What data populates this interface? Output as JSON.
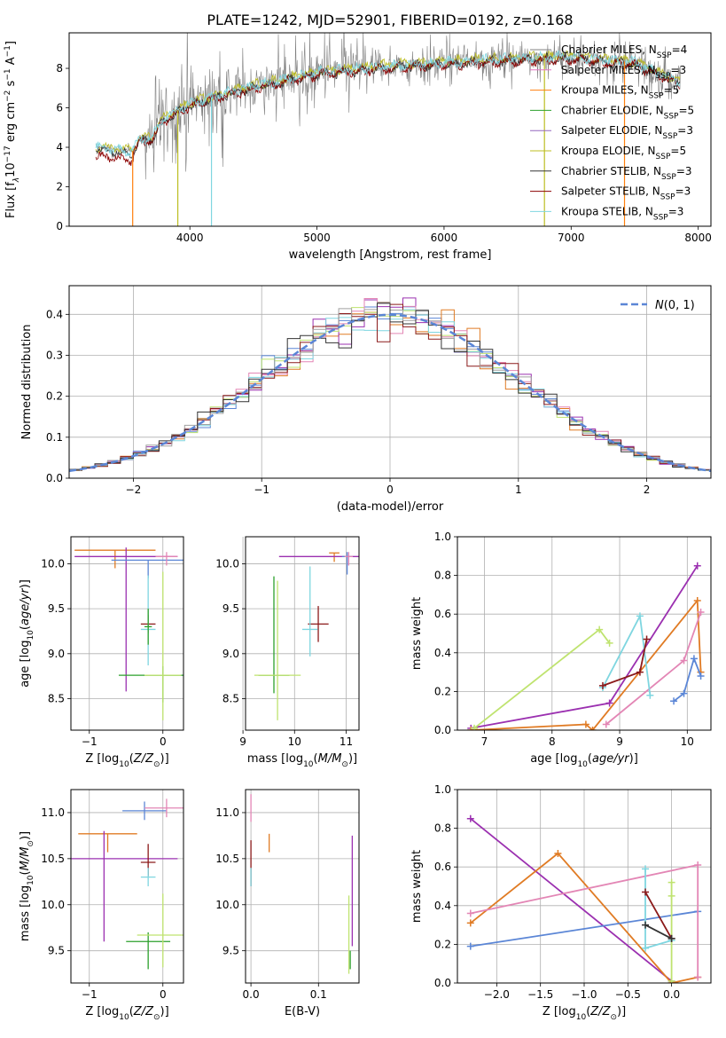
{
  "figure_title": "PLATE=1242, MJD=52901, FIBERID=0192, z=0.168",
  "colors": {
    "chabrier_miles": "#808080",
    "salpeter_miles": "#e377c2",
    "kroupa_miles": "#ff7f0e",
    "chabrier_elodie": "#2ca02c",
    "salpeter_elodie": "#9467bd",
    "kroupa_elodie": "#bcbd22",
    "chabrier_stelib": "#333333",
    "salpeter_stelib": "#8b0000",
    "kroupa_stelib": "#7fd6e0",
    "violet": "#9b30b0",
    "orange": "#e07b24",
    "blue": "#5b86d6",
    "pink": "#e386b5",
    "cyan": "#7fd6e0",
    "lime": "#bfe36f",
    "darkred": "#8b1a1a",
    "dashed": "#5b86d6"
  },
  "chart_data": [
    {
      "id": "spectrum",
      "type": "line",
      "title": "PLATE=1242, MJD=52901, FIBERID=0192, z=0.168",
      "xlabel": "wavelength [Angstrom, rest frame]",
      "ylabel": "Flux [f_λ 10^-17 erg cm^-2 s^-1 A^-1]",
      "xlim": [
        3050,
        8100
      ],
      "ylim": [
        0,
        9.8
      ],
      "xticks": [
        4000,
        5000,
        6000,
        7000,
        8000
      ],
      "yticks": [
        0,
        2,
        4,
        6,
        8
      ],
      "legend_position": "right",
      "legend": [
        {
          "label": "Chabrier MILES, N_SSP=4",
          "color": "#808080"
        },
        {
          "label": "Salpeter MILES, N_SSP=3",
          "color": "#e377c2"
        },
        {
          "label": "Kroupa MILES, N_SSP=5",
          "color": "#ff7f0e"
        },
        {
          "label": "Chabrier ELODIE, N_SSP=5",
          "color": "#2ca02c"
        },
        {
          "label": "Salpeter ELODIE, N_SSP=3",
          "color": "#9467bd"
        },
        {
          "label": "Kroupa ELODIE, N_SSP=5",
          "color": "#bcbd22"
        },
        {
          "label": "Chabrier STELIB, N_SSP=3",
          "color": "#333333"
        },
        {
          "label": "Salpeter STELIB, N_SSP=3",
          "color": "#8b0000"
        },
        {
          "label": "Kroupa STELIB, N_SSP=3",
          "color": "#7fd6e0"
        }
      ],
      "continuum_points": [
        [
          3260,
          4.0
        ],
        [
          3550,
          3.8
        ],
        [
          3600,
          4.4
        ],
        [
          3700,
          4.5
        ],
        [
          3800,
          5.5
        ],
        [
          4000,
          6.2
        ],
        [
          4200,
          6.6
        ],
        [
          4500,
          7.1
        ],
        [
          5000,
          7.8
        ],
        [
          5500,
          8.1
        ],
        [
          6000,
          8.3
        ],
        [
          6500,
          8.5
        ],
        [
          7000,
          8.6
        ],
        [
          7500,
          8.3
        ],
        [
          7860,
          7.3
        ]
      ],
      "spikes": [
        [
          3550,
          0,
          "#ff7f0e"
        ],
        [
          3905,
          0,
          "#bcbd22"
        ],
        [
          4170,
          0,
          "#7fd6e0"
        ],
        [
          6790,
          0,
          "#bcbd22"
        ],
        [
          7420,
          0,
          "#ff7f0e"
        ]
      ]
    },
    {
      "id": "residuals",
      "type": "histogram",
      "xlabel": "(data-model)/error",
      "ylabel": "Normed distribution",
      "xlim": [
        -2.5,
        2.5
      ],
      "ylim": [
        0,
        0.47
      ],
      "xticks": [
        -2,
        -1,
        0,
        1,
        2
      ],
      "yticks": [
        0.0,
        0.1,
        0.2,
        0.3,
        0.4
      ],
      "legend": [
        {
          "label": "N(0,1)",
          "style": "dashed",
          "color": "#5b86d6"
        }
      ],
      "legend_position": "top-right",
      "bin_width": 0.1,
      "n_histograms": 9
    },
    {
      "id": "age_vs_Z",
      "type": "errorbar",
      "xlabel": "Z [log10(Z/Z⊙)]",
      "ylabel": "age  [log10(age/yr)]",
      "xlim": [
        -1.25,
        0.28
      ],
      "ylim": [
        8.15,
        10.3
      ],
      "xticks": [
        -1,
        0
      ],
      "yticks": [
        8.5,
        9.0,
        9.5,
        10.0
      ],
      "points": [
        {
          "x": -0.65,
          "y": 10.15,
          "xerr": 0.55,
          "yerr_lo": 0.2,
          "yerr_hi": 0.0,
          "color": "#e07b24"
        },
        {
          "x": -0.5,
          "y": 10.08,
          "xerr": 0.7,
          "yerr_lo": 1.5,
          "yerr_hi": 0.1,
          "color": "#9b30b0"
        },
        {
          "x": -0.2,
          "y": 10.04,
          "xerr": 0.5,
          "yerr_lo": 0.2,
          "yerr_hi": 0.0,
          "color": "#5b86d6"
        },
        {
          "x": 0.05,
          "y": 10.08,
          "xerr": 0.15,
          "yerr_lo": 0.1,
          "yerr_hi": 0.05,
          "color": "#e386b5"
        },
        {
          "x": -0.2,
          "y": 9.33,
          "xerr": 0.1,
          "yerr_lo": 0.1,
          "yerr_hi": 0.1,
          "color": "#8b1a1a"
        },
        {
          "x": -0.2,
          "y": 9.27,
          "xerr": 0.1,
          "yerr_lo": 0.4,
          "yerr_hi": 0.6,
          "color": "#7fd6e0"
        },
        {
          "x": -0.2,
          "y": 9.3,
          "xerr": 0.05,
          "yerr_lo": 0.2,
          "yerr_hi": 0.2,
          "color": "#2ca02c"
        },
        {
          "x": 0.0,
          "y": 8.76,
          "xerr": 0.6,
          "yerr_lo": 0.3,
          "yerr_hi": 0.1,
          "color": "#2ca02c"
        },
        {
          "x": 0.0,
          "y": 8.76,
          "xerr": 0.25,
          "yerr_lo": 0.5,
          "yerr_hi": 1.15,
          "color": "#bfe36f"
        }
      ]
    },
    {
      "id": "age_vs_mass",
      "type": "errorbar",
      "xlabel": "mass [log10(M/M⊙)]",
      "ylabel": "",
      "xlim": [
        9.05,
        11.25
      ],
      "ylim": [
        8.15,
        10.3
      ],
      "xticks": [
        9,
        10,
        11
      ],
      "yticks": [
        8.5,
        9.0,
        9.5,
        10.0
      ],
      "points": [
        {
          "x": 10.77,
          "y": 10.12,
          "xerr": 0.1,
          "yerr_lo": 0.1,
          "yerr_hi": 0.0,
          "color": "#e07b24"
        },
        {
          "x": 10.5,
          "y": 10.08,
          "xerr": 0.8,
          "yerr_lo": 0.0,
          "yerr_hi": 0.0,
          "color": "#9b30b0"
        },
        {
          "x": 11.02,
          "y": 10.08,
          "xerr": 0.1,
          "yerr_lo": 0.2,
          "yerr_hi": 0.05,
          "color": "#5b86d6"
        },
        {
          "x": 11.05,
          "y": 10.08,
          "xerr": 0.08,
          "yerr_lo": 0.1,
          "yerr_hi": 0.05,
          "color": "#e386b5"
        },
        {
          "x": 10.46,
          "y": 9.33,
          "xerr": 0.2,
          "yerr_lo": 0.2,
          "yerr_hi": 0.2,
          "color": "#8b1a1a"
        },
        {
          "x": 10.3,
          "y": 9.27,
          "xerr": 0.15,
          "yerr_lo": 0.3,
          "yerr_hi": 0.7,
          "color": "#7fd6e0"
        },
        {
          "x": 9.6,
          "y": 8.76,
          "xerr": 0.3,
          "yerr_lo": 0.2,
          "yerr_hi": 1.1,
          "color": "#2ca02c"
        },
        {
          "x": 9.67,
          "y": 8.76,
          "xerr": 0.45,
          "yerr_lo": 0.5,
          "yerr_hi": 1.05,
          "color": "#bfe36f"
        }
      ]
    },
    {
      "id": "weight_vs_age",
      "type": "line",
      "xlabel": "age  [log10(age/yr)]",
      "ylabel": "mass weight",
      "xlim": [
        6.6,
        10.35
      ],
      "ylim": [
        0,
        1.0
      ],
      "xticks": [
        7,
        8,
        9,
        10
      ],
      "yticks": [
        0.0,
        0.2,
        0.4,
        0.6,
        0.8,
        1.0
      ],
      "series": [
        {
          "color": "#9b30b0",
          "x": [
            6.8,
            8.85,
            10.15
          ],
          "y": [
            0.01,
            0.14,
            0.85
          ]
        },
        {
          "color": "#e07b24",
          "x": [
            6.8,
            8.5,
            8.6,
            10.15,
            10.2
          ],
          "y": [
            0.0,
            0.03,
            0.0,
            0.67,
            0.3
          ]
        },
        {
          "color": "#5b86d6",
          "x": [
            9.8,
            9.95,
            10.1,
            10.2
          ],
          "y": [
            0.15,
            0.19,
            0.37,
            0.28
          ]
        },
        {
          "color": "#e386b5",
          "x": [
            8.8,
            9.95,
            10.2
          ],
          "y": [
            0.03,
            0.36,
            0.61
          ]
        },
        {
          "color": "#7fd6e0",
          "x": [
            8.75,
            9.3,
            9.45
          ],
          "y": [
            0.22,
            0.59,
            0.18
          ]
        },
        {
          "color": "#bfe36f",
          "x": [
            6.85,
            8.7,
            8.85
          ],
          "y": [
            0.01,
            0.52,
            0.45
          ]
        },
        {
          "color": "#8b1a1a",
          "x": [
            8.75,
            9.3,
            9.4
          ],
          "y": [
            0.23,
            0.3,
            0.47
          ]
        }
      ]
    },
    {
      "id": "mass_vs_Z",
      "type": "errorbar",
      "xlabel": "Z [log10(Z/Z⊙)]",
      "ylabel": "mass [log10(M/M⊙)]",
      "xlim": [
        -1.25,
        0.28
      ],
      "ylim": [
        9.15,
        11.25
      ],
      "xticks": [
        -1,
        0
      ],
      "yticks": [
        9.5,
        10.0,
        10.5,
        11.0
      ],
      "points": [
        {
          "x": -0.75,
          "y": 10.77,
          "xerr": 0.4,
          "yerr_lo": 0.2,
          "yerr_hi": 0.0,
          "color": "#e07b24"
        },
        {
          "x": -0.8,
          "y": 10.5,
          "xerr": 1.0,
          "yerr_lo": 0.9,
          "yerr_hi": 0.3,
          "color": "#9b30b0"
        },
        {
          "x": -0.25,
          "y": 11.02,
          "xerr": 0.3,
          "yerr_lo": 0.1,
          "yerr_hi": 0.1,
          "color": "#5b86d6"
        },
        {
          "x": 0.05,
          "y": 11.05,
          "xerr": 0.3,
          "yerr_lo": 0.1,
          "yerr_hi": 0.1,
          "color": "#e386b5"
        },
        {
          "x": -0.2,
          "y": 10.46,
          "xerr": 0.1,
          "yerr_lo": 0.15,
          "yerr_hi": 0.2,
          "color": "#8b1a1a"
        },
        {
          "x": -0.2,
          "y": 10.3,
          "xerr": 0.1,
          "yerr_lo": 0.1,
          "yerr_hi": 0.1,
          "color": "#7fd6e0"
        },
        {
          "x": -0.2,
          "y": 9.6,
          "xerr": 0.3,
          "yerr_lo": 0.3,
          "yerr_hi": 0.1,
          "color": "#2ca02c"
        },
        {
          "x": 0.0,
          "y": 9.67,
          "xerr": 0.35,
          "yerr_lo": 0.35,
          "yerr_hi": 0.45,
          "color": "#bfe36f"
        }
      ]
    },
    {
      "id": "mass_vs_EBV",
      "type": "errorbar",
      "xlabel": "E(B-V)",
      "ylabel": "",
      "xlim": [
        -0.008,
        0.16
      ],
      "ylim": [
        9.15,
        11.25
      ],
      "xticks": [
        0.0,
        0.1
      ],
      "yticks": [
        9.5,
        10.0,
        10.5,
        11.0
      ],
      "points": [
        {
          "x": 0.0,
          "y": 11.05,
          "xerr": 0.0,
          "yerr_lo": 0.15,
          "yerr_hi": 0.15,
          "color": "#e386b5"
        },
        {
          "x": 0.0,
          "y": 10.5,
          "xerr": 0.0,
          "yerr_lo": 0.3,
          "yerr_hi": 0.2,
          "color": "#8b1a1a"
        },
        {
          "x": 0.0,
          "y": 10.3,
          "xerr": 0.0,
          "yerr_lo": 0.1,
          "yerr_hi": 0.1,
          "color": "#7fd6e0"
        },
        {
          "x": 0.027,
          "y": 10.67,
          "xerr": 0.0,
          "yerr_lo": 0.1,
          "yerr_hi": 0.1,
          "color": "#e07b24"
        },
        {
          "x": 0.15,
          "y": 10.15,
          "xerr": 0.0,
          "yerr_lo": 0.6,
          "yerr_hi": 0.6,
          "color": "#9b30b0"
        },
        {
          "x": 0.145,
          "y": 9.65,
          "xerr": 0.0,
          "yerr_lo": 0.4,
          "yerr_hi": 0.45,
          "color": "#bfe36f"
        },
        {
          "x": 0.147,
          "y": 9.4,
          "xerr": 0.0,
          "yerr_lo": 0.1,
          "yerr_hi": 0.1,
          "color": "#2ca02c"
        }
      ]
    },
    {
      "id": "weight_vs_Z",
      "type": "line",
      "xlabel": "Z [log10(Z/Z⊙)]",
      "ylabel": "mass weight",
      "xlim": [
        -2.45,
        0.45
      ],
      "ylim": [
        0,
        1.0
      ],
      "xticks": [
        -2.0,
        -1.5,
        -1.0,
        -0.5,
        0.0
      ],
      "yticks": [
        0.0,
        0.2,
        0.4,
        0.6,
        0.8,
        1.0
      ],
      "series": [
        {
          "color": "#9b30b0",
          "x": [
            -2.3,
            0.0
          ],
          "y": [
            0.85,
            0.01
          ]
        },
        {
          "color": "#e07b24",
          "x": [
            -2.3,
            -1.3,
            0.0,
            0.3
          ],
          "y": [
            0.31,
            0.67,
            0.0,
            0.03
          ]
        },
        {
          "color": "#5b86d6",
          "x": [
            -2.3,
            0.3
          ],
          "y": [
            0.19,
            0.37
          ]
        },
        {
          "color": "#e386b5",
          "x": [
            -2.3,
            0.3,
            0.3
          ],
          "y": [
            0.36,
            0.61,
            0.03
          ]
        },
        {
          "color": "#7fd6e0",
          "x": [
            -0.3,
            -0.3,
            0.0
          ],
          "y": [
            0.59,
            0.18,
            0.22
          ]
        },
        {
          "color": "#bfe36f",
          "x": [
            0.0,
            0.0,
            0.0
          ],
          "y": [
            0.52,
            0.45,
            0.01
          ]
        },
        {
          "color": "#8b1a1a",
          "x": [
            -0.3,
            0.0
          ],
          "y": [
            0.47,
            0.23
          ]
        },
        {
          "color": "#333333",
          "x": [
            -0.3,
            0.0
          ],
          "y": [
            0.3,
            0.23
          ]
        }
      ]
    }
  ]
}
